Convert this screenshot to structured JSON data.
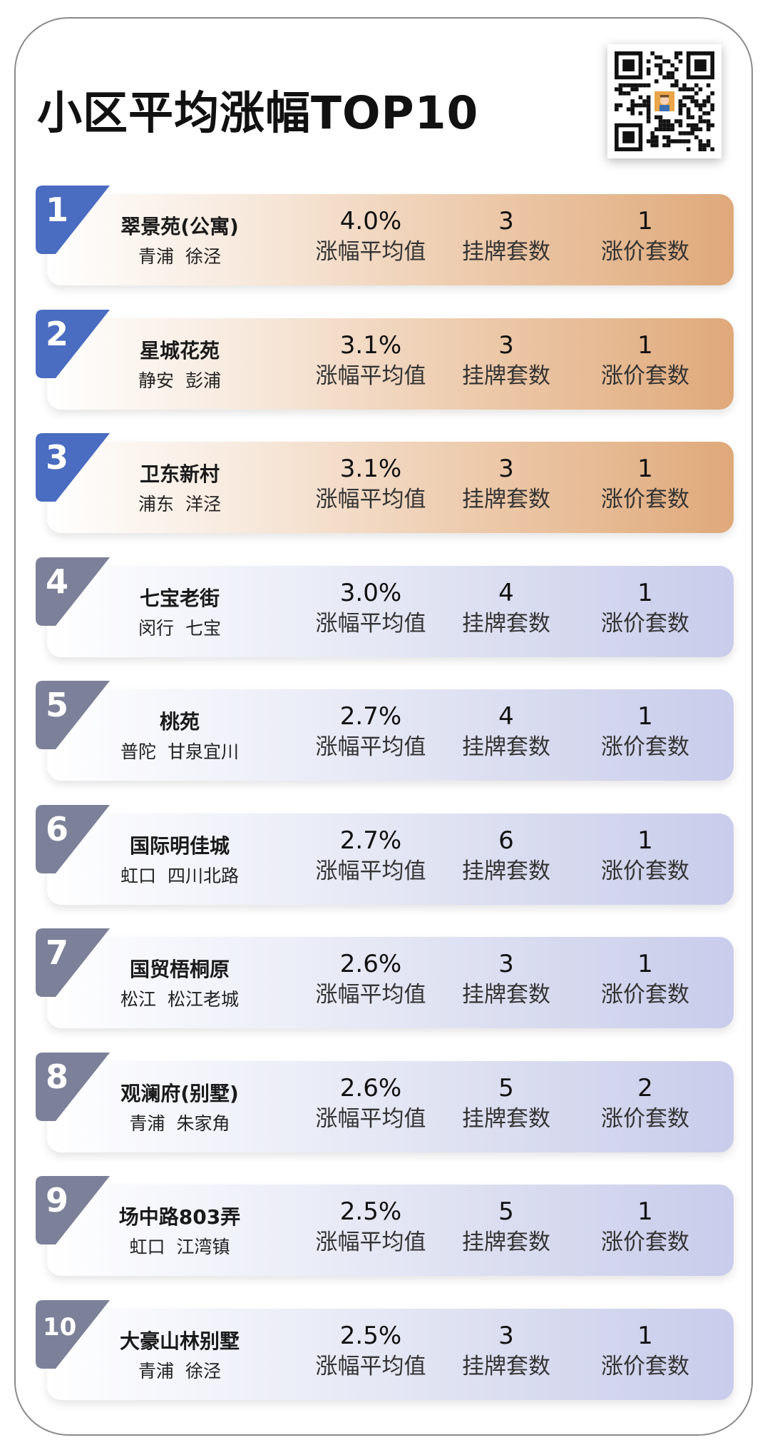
{
  "title": "小区平均涨幅TOP10",
  "qr_icon": "qr-code-with-avatar",
  "labels": {
    "rate": "涨幅平均值",
    "listed": "挂牌套数",
    "raised": "涨价套数"
  },
  "colors": {
    "top_badge": "#4a6cc1",
    "rest_badge": "#7c8098",
    "top_bar_end": "#dfa97a",
    "rest_bar_end": "#c9cceb"
  },
  "rows": [
    {
      "rank": "1",
      "name": "翠景苑(公寓)",
      "district": "青浦",
      "area": "徐泾",
      "rate": "4.0%",
      "listed": "3",
      "raised": "1"
    },
    {
      "rank": "2",
      "name": "星城花苑",
      "district": "静安",
      "area": "彭浦",
      "rate": "3.1%",
      "listed": "3",
      "raised": "1"
    },
    {
      "rank": "3",
      "name": "卫东新村",
      "district": "浦东",
      "area": "洋泾",
      "rate": "3.1%",
      "listed": "3",
      "raised": "1"
    },
    {
      "rank": "4",
      "name": "七宝老街",
      "district": "闵行",
      "area": "七宝",
      "rate": "3.0%",
      "listed": "4",
      "raised": "1"
    },
    {
      "rank": "5",
      "name": "桃苑",
      "district": "普陀",
      "area": "甘泉宜川",
      "rate": "2.7%",
      "listed": "4",
      "raised": "1"
    },
    {
      "rank": "6",
      "name": "国际明佳城",
      "district": "虹口",
      "area": "四川北路",
      "rate": "2.7%",
      "listed": "6",
      "raised": "1"
    },
    {
      "rank": "7",
      "name": "国贸梧桐原",
      "district": "松江",
      "area": "松江老城",
      "rate": "2.6%",
      "listed": "3",
      "raised": "1"
    },
    {
      "rank": "8",
      "name": "观澜府(别墅)",
      "district": "青浦",
      "area": "朱家角",
      "rate": "2.6%",
      "listed": "5",
      "raised": "2"
    },
    {
      "rank": "9",
      "name": "场中路803弄",
      "district": "虹口",
      "area": "江湾镇",
      "rate": "2.5%",
      "listed": "5",
      "raised": "1"
    },
    {
      "rank": "10",
      "name": "大豪山林别墅",
      "district": "青浦",
      "area": "徐泾",
      "rate": "2.5%",
      "listed": "3",
      "raised": "1"
    }
  ]
}
